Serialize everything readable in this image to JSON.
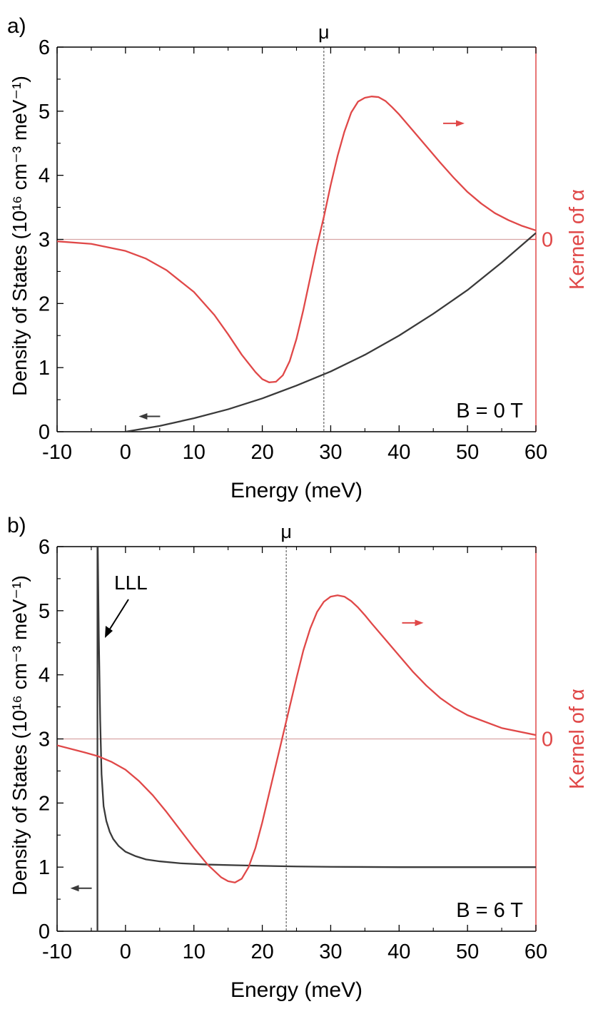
{
  "colors": {
    "dos": "#3a3a3a",
    "kernel": "#e04848",
    "zero_line": "#d9a5a5",
    "mu_line": "#444444"
  },
  "chart_data": [
    {
      "panel_label": "a)",
      "type": "line",
      "xlabel": "Energy (meV)",
      "ylabel": "Density of States (10¹⁶ cm⁻³ meV⁻¹)",
      "y2label": "Kernel of α",
      "y2_tick": "0",
      "xlim": [
        -10,
        60
      ],
      "ylim": [
        0,
        6
      ],
      "xticks": [
        -10,
        0,
        10,
        20,
        30,
        40,
        50,
        60
      ],
      "yticks": [
        0,
        1,
        2,
        3,
        4,
        5,
        6
      ],
      "mu_label": "μ",
      "mu": 29,
      "field_label": "B = 0 T",
      "kernel_zero": 3,
      "series": [
        {
          "x": [
            0,
            5,
            10,
            15,
            20,
            25,
            30,
            35,
            40,
            45,
            50,
            55,
            60
          ],
          "y": [
            0,
            0.09,
            0.21,
            0.35,
            0.52,
            0.72,
            0.94,
            1.2,
            1.5,
            1.84,
            2.21,
            2.64,
            3.1
          ]
        },
        {
          "x": [
            -10,
            -5,
            0,
            3,
            6,
            10,
            13,
            15,
            17,
            19,
            20,
            21,
            22,
            23,
            24,
            25,
            26,
            27,
            28,
            29,
            30,
            31,
            32,
            33,
            34,
            35,
            36,
            37,
            38,
            39,
            40,
            42,
            44,
            46,
            48,
            50,
            52,
            54,
            56,
            58,
            60
          ],
          "y": [
            2.97,
            2.93,
            2.82,
            2.7,
            2.52,
            2.18,
            1.82,
            1.52,
            1.2,
            0.93,
            0.82,
            0.77,
            0.78,
            0.88,
            1.1,
            1.45,
            1.9,
            2.4,
            2.9,
            3.35,
            3.85,
            4.3,
            4.68,
            4.98,
            5.15,
            5.21,
            5.23,
            5.22,
            5.16,
            5.06,
            4.95,
            4.7,
            4.45,
            4.2,
            3.96,
            3.74,
            3.56,
            3.41,
            3.3,
            3.21,
            3.14
          ]
        }
      ],
      "annotations": [
        {
          "text": "←",
          "x": 3.5,
          "y": 0.24
        },
        {
          "text": "→",
          "x": 48,
          "y": 4.81
        }
      ]
    },
    {
      "panel_label": "b)",
      "type": "line",
      "xlabel": "Energy (meV)",
      "ylabel": "Density of States (10¹⁶ cm⁻³ meV⁻¹)",
      "y2label": "Kernel of α",
      "y2_tick": "0",
      "xlim": [
        -10,
        60
      ],
      "ylim": [
        0,
        6
      ],
      "xticks": [
        -10,
        0,
        10,
        20,
        30,
        40,
        50,
        60
      ],
      "yticks": [
        0,
        1,
        2,
        3,
        4,
        5,
        6
      ],
      "mu_label": "μ",
      "mu": 23.5,
      "field_label": "B = 6 T",
      "kernel_zero": 3,
      "lll_label": "LLL",
      "series": [
        {
          "x": [
            -4.1,
            -4.1,
            -4.05,
            -3.9,
            -3.7,
            -3.5,
            -3.2,
            -2.8,
            -2.3,
            -1.8,
            -1,
            0,
            1.5,
            3,
            5,
            8,
            12,
            16,
            20,
            25,
            30,
            40,
            50,
            60
          ],
          "y": [
            0,
            6,
            6,
            4.6,
            3.3,
            2.45,
            1.95,
            1.72,
            1.55,
            1.44,
            1.33,
            1.24,
            1.17,
            1.12,
            1.09,
            1.06,
            1.04,
            1.03,
            1.02,
            1.01,
            1.005,
            1,
            1,
            1
          ]
        },
        {
          "x": [
            -10,
            -6,
            -4,
            -2,
            0,
            2,
            4,
            6,
            8,
            10,
            12,
            14,
            15,
            16,
            17,
            18,
            19,
            20,
            21,
            22,
            23,
            24,
            25,
            26,
            27,
            28,
            29,
            30,
            31,
            32,
            33,
            34,
            35,
            36,
            38,
            40,
            42,
            44,
            46,
            48,
            50,
            55,
            60
          ],
          "y": [
            2.9,
            2.79,
            2.73,
            2.64,
            2.52,
            2.34,
            2.12,
            1.86,
            1.58,
            1.3,
            1.04,
            0.84,
            0.78,
            0.76,
            0.82,
            1.0,
            1.3,
            1.7,
            2.15,
            2.6,
            3.05,
            3.5,
            3.95,
            4.38,
            4.72,
            4.98,
            5.14,
            5.22,
            5.24,
            5.22,
            5.15,
            5.05,
            4.93,
            4.8,
            4.55,
            4.3,
            4.05,
            3.83,
            3.64,
            3.49,
            3.37,
            3.17,
            3.06
          ]
        }
      ],
      "annotations": [
        {
          "text": "←",
          "x": -6.5,
          "y": 0.67
        },
        {
          "text": "→",
          "x": 42,
          "y": 4.81
        }
      ]
    }
  ]
}
